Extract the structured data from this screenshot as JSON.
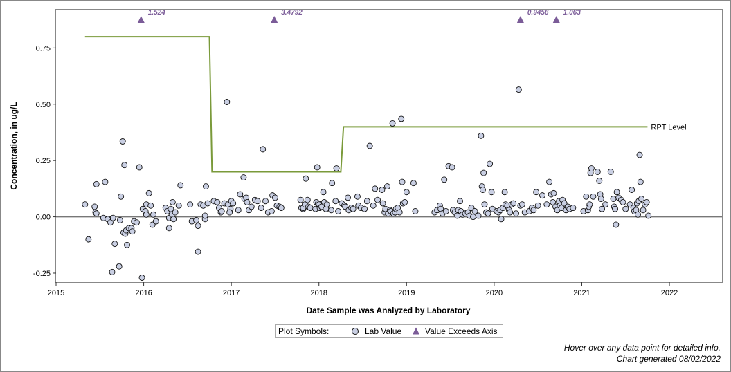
{
  "colors": {
    "point_fill": "#c9cfe3",
    "point_stroke": "#111111",
    "exceed": "#7b5c98",
    "rpt_line": "#7a9a3a",
    "zero_line": "#777777",
    "frame": "#888888"
  },
  "legend": {
    "title": "Plot Symbols:",
    "lab_value": "Lab Value",
    "exceeds": "Value Exceeds Axis"
  },
  "notes": {
    "hover": "Hover over any data point for detailed info.",
    "generated": "Chart generated 08/02/2022"
  },
  "chart_data": {
    "type": "scatter",
    "xlabel": "Date Sample was Analyzed by Laboratory",
    "ylabel": "Concentration, in ug/L",
    "xlim": [
      2015.0,
      2022.6
    ],
    "ylim": [
      -0.29,
      0.92
    ],
    "xticks": [
      2015,
      2016,
      2017,
      2018,
      2019,
      2020,
      2021,
      2022
    ],
    "yticks": [
      -0.25,
      0.0,
      0.25,
      0.5,
      0.75
    ],
    "ytick_labels": [
      "-0.25",
      "0.00",
      "0.25",
      "0.50",
      "0.75"
    ],
    "grid": false,
    "rpt_level": {
      "label": "RPT Level",
      "points": [
        [
          2015.33,
          0.8
        ],
        [
          2016.75,
          0.8
        ],
        [
          2016.78,
          0.2
        ],
        [
          2018.25,
          0.2
        ],
        [
          2018.28,
          0.4
        ],
        [
          2021.75,
          0.4
        ]
      ]
    },
    "exceeds_axis": [
      {
        "x": 2015.97,
        "value": "1.524"
      },
      {
        "x": 2017.49,
        "value": "3.4792"
      },
      {
        "x": 2020.3,
        "value": "0.9456"
      },
      {
        "x": 2020.71,
        "value": "1.063"
      }
    ],
    "lab_values": [
      [
        2015.33,
        0.055
      ],
      [
        2015.37,
        -0.1
      ],
      [
        2015.44,
        0.045
      ],
      [
        2015.45,
        0.02
      ],
      [
        2015.46,
        0.145
      ],
      [
        2015.46,
        0.015
      ],
      [
        2015.54,
        -0.005
      ],
      [
        2015.56,
        0.155
      ],
      [
        2015.59,
        -0.01
      ],
      [
        2015.62,
        -0.025
      ],
      [
        2015.64,
        -0.245
      ],
      [
        2015.65,
        -0.005
      ],
      [
        2015.67,
        -0.12
      ],
      [
        2015.72,
        -0.22
      ],
      [
        2015.73,
        -0.015
      ],
      [
        2015.74,
        0.09
      ],
      [
        2015.76,
        0.335
      ],
      [
        2015.77,
        -0.07
      ],
      [
        2015.78,
        0.23
      ],
      [
        2015.79,
        -0.075
      ],
      [
        2015.8,
        -0.06
      ],
      [
        2015.81,
        -0.125
      ],
      [
        2015.83,
        -0.05
      ],
      [
        2015.86,
        -0.05
      ],
      [
        2015.87,
        -0.065
      ],
      [
        2015.89,
        -0.02
      ],
      [
        2015.92,
        -0.025
      ],
      [
        2015.95,
        0.22
      ],
      [
        2015.98,
        -0.27
      ],
      [
        2015.99,
        0.035
      ],
      [
        2016.02,
        0.025
      ],
      [
        2016.03,
        0.055
      ],
      [
        2016.03,
        0.01
      ],
      [
        2016.06,
        0.105
      ],
      [
        2016.08,
        0.05
      ],
      [
        2016.1,
        -0.035
      ],
      [
        2016.11,
        0.01
      ],
      [
        2016.14,
        -0.02
      ],
      [
        2016.25,
        0.04
      ],
      [
        2016.27,
        0.025
      ],
      [
        2016.29,
        -0.05
      ],
      [
        2016.29,
        -0.005
      ],
      [
        2016.31,
        0.035
      ],
      [
        2016.32,
        0.01
      ],
      [
        2016.33,
        0.065
      ],
      [
        2016.34,
        -0.01
      ],
      [
        2016.36,
        0.02
      ],
      [
        2016.4,
        0.05
      ],
      [
        2016.42,
        0.14
      ],
      [
        2016.53,
        0.055
      ],
      [
        2016.55,
        -0.02
      ],
      [
        2016.6,
        -0.015
      ],
      [
        2016.62,
        -0.04
      ],
      [
        2016.62,
        -0.155
      ],
      [
        2016.65,
        0.055
      ],
      [
        2016.68,
        0.05
      ],
      [
        2016.7,
        -0.01
      ],
      [
        2016.7,
        0.005
      ],
      [
        2016.71,
        0.135
      ],
      [
        2016.73,
        0.06
      ],
      [
        2016.8,
        0.07
      ],
      [
        2016.84,
        0.065
      ],
      [
        2016.86,
        0.04
      ],
      [
        2016.88,
        0.02
      ],
      [
        2016.89,
        0.025
      ],
      [
        2016.92,
        0.06
      ],
      [
        2016.96,
        0.055
      ],
      [
        2016.99,
        0.035
      ],
      [
        2016.98,
        0.02
      ],
      [
        2017.0,
        0.07
      ],
      [
        2017.02,
        0.06
      ],
      [
        2016.95,
        0.51
      ],
      [
        2017.08,
        0.03
      ],
      [
        2017.1,
        0.1
      ],
      [
        2017.14,
        0.175
      ],
      [
        2017.15,
        0.08
      ],
      [
        2017.17,
        0.085
      ],
      [
        2017.18,
        0.065
      ],
      [
        2017.2,
        0.03
      ],
      [
        2017.23,
        0.045
      ],
      [
        2017.27,
        0.075
      ],
      [
        2017.3,
        0.07
      ],
      [
        2017.34,
        0.04
      ],
      [
        2017.36,
        0.3
      ],
      [
        2017.39,
        0.07
      ],
      [
        2017.42,
        0.02
      ],
      [
        2017.46,
        0.025
      ],
      [
        2017.47,
        0.095
      ],
      [
        2017.5,
        0.085
      ],
      [
        2017.52,
        0.05
      ],
      [
        2017.55,
        0.045
      ],
      [
        2017.57,
        0.04
      ],
      [
        2017.79,
        0.075
      ],
      [
        2017.8,
        0.04
      ],
      [
        2017.82,
        0.035
      ],
      [
        2017.82,
        0.04
      ],
      [
        2017.84,
        0.055
      ],
      [
        2017.85,
        0.17
      ],
      [
        2017.87,
        0.075
      ],
      [
        2017.88,
        0.045
      ],
      [
        2017.9,
        0.04
      ],
      [
        2017.96,
        0.035
      ],
      [
        2017.97,
        0.065
      ],
      [
        2017.98,
        0.22
      ],
      [
        2017.99,
        0.06
      ],
      [
        2018.0,
        0.055
      ],
      [
        2018.01,
        0.04
      ],
      [
        2018.03,
        0.045
      ],
      [
        2018.05,
        0.11
      ],
      [
        2018.06,
        0.065
      ],
      [
        2018.08,
        0.035
      ],
      [
        2018.09,
        0.055
      ],
      [
        2018.14,
        0.03
      ],
      [
        2018.15,
        0.15
      ],
      [
        2018.19,
        0.07
      ],
      [
        2018.2,
        0.215
      ],
      [
        2018.22,
        0.025
      ],
      [
        2018.26,
        0.06
      ],
      [
        2018.29,
        0.05
      ],
      [
        2018.3,
        0.045
      ],
      [
        2018.33,
        0.085
      ],
      [
        2018.34,
        0.03
      ],
      [
        2018.37,
        0.04
      ],
      [
        2018.39,
        0.035
      ],
      [
        2018.44,
        0.09
      ],
      [
        2018.45,
        0.05
      ],
      [
        2018.48,
        0.04
      ],
      [
        2018.52,
        0.035
      ],
      [
        2018.55,
        0.07
      ],
      [
        2018.58,
        0.315
      ],
      [
        2018.62,
        0.05
      ],
      [
        2018.64,
        0.125
      ],
      [
        2018.67,
        0.075
      ],
      [
        2018.72,
        0.12
      ],
      [
        2018.73,
        0.06
      ],
      [
        2018.75,
        0.02
      ],
      [
        2018.76,
        0.035
      ],
      [
        2018.78,
        0.135
      ],
      [
        2018.79,
        0.015
      ],
      [
        2018.81,
        0.03
      ],
      [
        2018.82,
        0.025
      ],
      [
        2018.84,
        0.415
      ],
      [
        2018.85,
        0.015
      ],
      [
        2018.87,
        0.02
      ],
      [
        2018.88,
        0.035
      ],
      [
        2018.9,
        0.04
      ],
      [
        2018.92,
        0.02
      ],
      [
        2018.94,
        0.435
      ],
      [
        2018.95,
        0.155
      ],
      [
        2018.96,
        0.06
      ],
      [
        2018.98,
        0.065
      ],
      [
        2019.0,
        0.11
      ],
      [
        2019.08,
        0.15
      ],
      [
        2019.1,
        0.025
      ],
      [
        2019.32,
        0.02
      ],
      [
        2019.35,
        0.03
      ],
      [
        2019.38,
        0.05
      ],
      [
        2019.39,
        0.035
      ],
      [
        2019.41,
        0.015
      ],
      [
        2019.43,
        0.165
      ],
      [
        2019.45,
        0.025
      ],
      [
        2019.48,
        0.225
      ],
      [
        2019.52,
        0.22
      ],
      [
        2019.53,
        0.03
      ],
      [
        2019.55,
        0.02
      ],
      [
        2019.58,
        0.005
      ],
      [
        2019.59,
        0.03
      ],
      [
        2019.61,
        0.07
      ],
      [
        2019.62,
        0.025
      ],
      [
        2019.64,
        0.01
      ],
      [
        2019.67,
        0.015
      ],
      [
        2019.7,
        0.02
      ],
      [
        2019.72,
        0.005
      ],
      [
        2019.74,
        0.04
      ],
      [
        2019.76,
        0.0
      ],
      [
        2019.78,
        0.025
      ],
      [
        2019.82,
        0.005
      ],
      [
        2019.85,
        0.36
      ],
      [
        2019.86,
        0.135
      ],
      [
        2019.87,
        0.12
      ],
      [
        2019.88,
        0.195
      ],
      [
        2019.89,
        0.055
      ],
      [
        2019.91,
        0.02
      ],
      [
        2019.93,
        0.015
      ],
      [
        2019.95,
        0.235
      ],
      [
        2019.97,
        0.11
      ],
      [
        2019.98,
        0.035
      ],
      [
        2020.03,
        0.025
      ],
      [
        2020.05,
        0.02
      ],
      [
        2020.07,
        0.03
      ],
      [
        2020.08,
        -0.01
      ],
      [
        2020.1,
        0.04
      ],
      [
        2020.12,
        0.11
      ],
      [
        2020.13,
        0.055
      ],
      [
        2020.15,
        0.05
      ],
      [
        2020.17,
        0.03
      ],
      [
        2020.18,
        0.02
      ],
      [
        2020.2,
        0.055
      ],
      [
        2020.22,
        0.06
      ],
      [
        2020.25,
        0.015
      ],
      [
        2020.28,
        0.565
      ],
      [
        2020.3,
        0.05
      ],
      [
        2020.32,
        0.055
      ],
      [
        2020.35,
        0.02
      ],
      [
        2020.4,
        0.025
      ],
      [
        2020.43,
        0.04
      ],
      [
        2020.45,
        0.03
      ],
      [
        2020.48,
        0.11
      ],
      [
        2020.5,
        0.05
      ],
      [
        2020.55,
        0.095
      ],
      [
        2020.6,
        0.055
      ],
      [
        2020.63,
        0.155
      ],
      [
        2020.65,
        0.1
      ],
      [
        2020.67,
        0.065
      ],
      [
        2020.68,
        0.105
      ],
      [
        2020.7,
        0.045
      ],
      [
        2020.72,
        0.03
      ],
      [
        2020.74,
        0.07
      ],
      [
        2020.75,
        0.05
      ],
      [
        2020.77,
        0.04
      ],
      [
        2020.78,
        0.075
      ],
      [
        2020.8,
        0.06
      ],
      [
        2020.82,
        0.03
      ],
      [
        2020.84,
        0.045
      ],
      [
        2020.86,
        0.035
      ],
      [
        2020.9,
        0.04
      ],
      [
        2021.02,
        0.025
      ],
      [
        2021.05,
        0.09
      ],
      [
        2021.07,
        0.03
      ],
      [
        2021.08,
        0.045
      ],
      [
        2021.09,
        0.055
      ],
      [
        2021.1,
        0.195
      ],
      [
        2021.11,
        0.215
      ],
      [
        2021.13,
        0.09
      ],
      [
        2021.18,
        0.2
      ],
      [
        2021.2,
        0.16
      ],
      [
        2021.21,
        0.1
      ],
      [
        2021.22,
        0.08
      ],
      [
        2021.23,
        0.035
      ],
      [
        2021.27,
        0.055
      ],
      [
        2021.33,
        0.2
      ],
      [
        2021.36,
        0.08
      ],
      [
        2021.37,
        0.045
      ],
      [
        2021.38,
        0.035
      ],
      [
        2021.39,
        -0.035
      ],
      [
        2021.4,
        0.11
      ],
      [
        2021.42,
        0.085
      ],
      [
        2021.45,
        0.075
      ],
      [
        2021.47,
        0.065
      ],
      [
        2021.5,
        0.035
      ],
      [
        2021.55,
        0.055
      ],
      [
        2021.57,
        0.12
      ],
      [
        2021.59,
        0.04
      ],
      [
        2021.6,
        0.025
      ],
      [
        2021.62,
        0.03
      ],
      [
        2021.63,
        0.06
      ],
      [
        2021.64,
        0.01
      ],
      [
        2021.65,
        0.07
      ],
      [
        2021.66,
        0.275
      ],
      [
        2021.67,
        0.155
      ],
      [
        2021.68,
        0.08
      ],
      [
        2021.7,
        0.03
      ],
      [
        2021.72,
        0.055
      ],
      [
        2021.74,
        0.065
      ],
      [
        2021.76,
        0.005
      ]
    ]
  }
}
